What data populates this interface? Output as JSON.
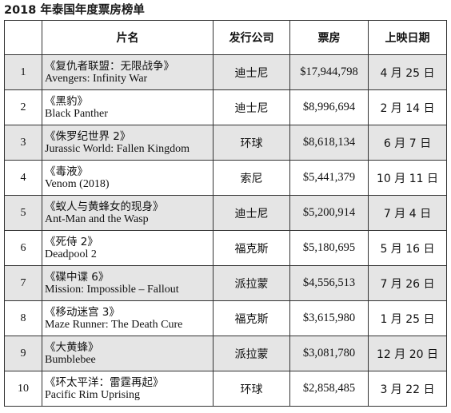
{
  "title": "2018 年泰国年度票房榜单",
  "headers": {
    "rank": "",
    "title": "片名",
    "distributor": "发行公司",
    "gross": "票房",
    "release_date": "上映日期"
  },
  "rows": [
    {
      "rank": "1",
      "title_cn": "《复仇者联盟：无限战争》",
      "title_en": "Avengers: Infinity War",
      "distributor": "迪士尼",
      "gross": "$17,944,798",
      "release_date": "4 月 25 日"
    },
    {
      "rank": "2",
      "title_cn": "《黑豹》",
      "title_en": "Black Panther",
      "distributor": "迪士尼",
      "gross": "$8,996,694",
      "release_date": "2 月 14 日"
    },
    {
      "rank": "3",
      "title_cn": "《侏罗纪世界 2》",
      "title_en": "Jurassic World: Fallen Kingdom",
      "distributor": "环球",
      "gross": "$8,618,134",
      "release_date": "6 月 7 日"
    },
    {
      "rank": "4",
      "title_cn": "《毒液》",
      "title_en": "Venom (2018)",
      "distributor": "索尼",
      "gross": "$5,441,379",
      "release_date": "10 月 11 日"
    },
    {
      "rank": "5",
      "title_cn": "《蚁人与黄蜂女的现身》",
      "title_en": "Ant-Man and the Wasp",
      "distributor": "迪士尼",
      "gross": "$5,200,914",
      "release_date": "7 月 4 日"
    },
    {
      "rank": "6",
      "title_cn": "《死侍 2》",
      "title_en": "Deadpool 2",
      "distributor": "福克斯",
      "gross": "$5,180,695",
      "release_date": "5 月 16 日"
    },
    {
      "rank": "7",
      "title_cn": "《碟中谍 6》",
      "title_en": "Mission: Impossible – Fallout",
      "distributor": "派拉蒙",
      "gross": "$4,556,513",
      "release_date": "7 月 26 日"
    },
    {
      "rank": "8",
      "title_cn": "《移动迷宫 3》",
      "title_en": "Maze Runner: The Death Cure",
      "distributor": "福克斯",
      "gross": "$3,615,980",
      "release_date": "1 月 25 日"
    },
    {
      "rank": "9",
      "title_cn": "《大黄蜂》",
      "title_en": "Bumblebee",
      "distributor": "派拉蒙",
      "gross": "$3,081,780",
      "release_date": "12 月 20 日"
    },
    {
      "rank": "10",
      "title_cn": "《环太平洋：雷霆再起》",
      "title_en": "Pacific Rim Uprising",
      "distributor": "环球",
      "gross": "$2,858,485",
      "release_date": "3 月 22 日"
    }
  ],
  "colors": {
    "shaded_row": "#e5e5e5",
    "plain_row": "#ffffff",
    "border": "#333333",
    "text": "#111111"
  }
}
